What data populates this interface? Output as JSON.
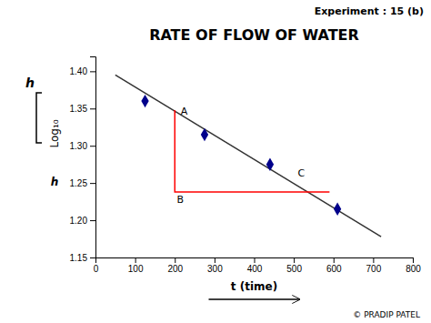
{
  "chart_data": {
    "type": "scatter",
    "title": "RATE OF FLOW OF WATER",
    "subtitle": "Experiment : 15 (b)",
    "xlabel": "t (time)",
    "ylabel": [
      "h",
      "Log₁₀",
      "h"
    ],
    "series": [
      {
        "type": "scatter",
        "x": [
          125,
          275,
          440,
          610
        ],
        "values": [
          1.36,
          1.315,
          1.275,
          1.215
        ],
        "color": "#00008B",
        "marker": "diamond"
      },
      {
        "type": "line",
        "x": [
          50,
          720
        ],
        "values": [
          1.395,
          1.178
        ],
        "color": "#333333"
      },
      {
        "type": "line",
        "x": [
          200,
          200,
          590
        ],
        "values": [
          1.348,
          1.238,
          1.238
        ],
        "color": "#FF0000"
      }
    ],
    "annotations": [
      {
        "text": "A",
        "x": 215,
        "y": 1.352
      },
      {
        "text": "B",
        "x": 205,
        "y": 1.233
      },
      {
        "text": "C",
        "x": 510,
        "y": 1.268
      },
      {
        "text": "© PRADIP PATEL"
      }
    ],
    "xlim": [
      0,
      800
    ],
    "xticks": [
      0,
      100,
      200,
      300,
      400,
      500,
      600,
      700,
      800
    ],
    "ylim": [
      1.15,
      1.42
    ],
    "yticks": [
      1.15,
      {
        "value": 1.2,
        "label": "1.20"
      },
      1.25,
      {
        "value": 1.3,
        "label": "1.30"
      },
      1.35,
      {
        "value": 1.4,
        "label": "1.40"
      }
    ],
    "grid": false
  }
}
